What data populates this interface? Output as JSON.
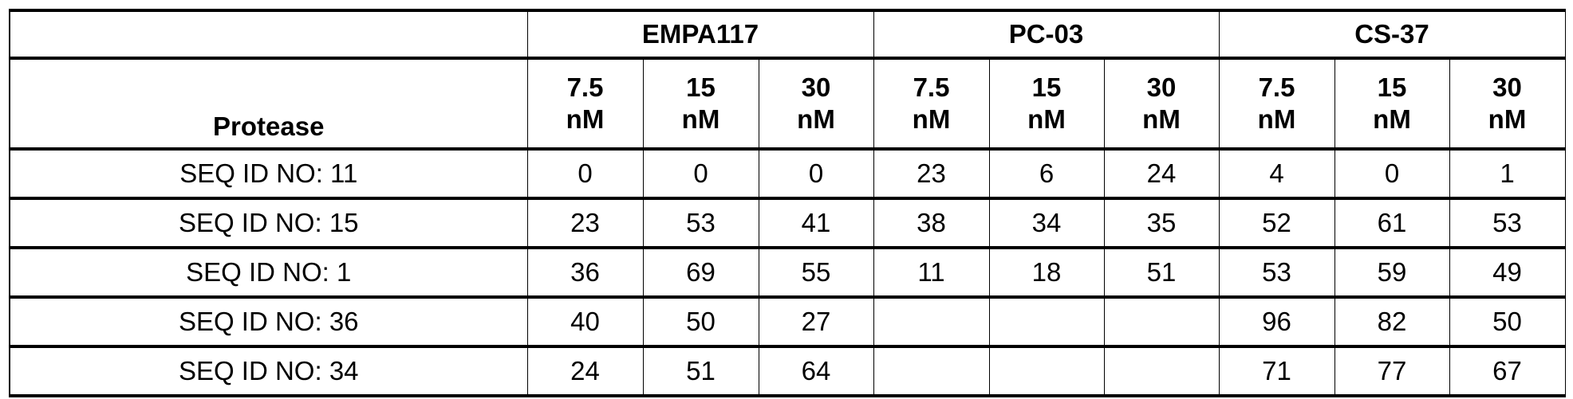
{
  "table": {
    "first_header": "Protease",
    "groups": [
      "EMPA117",
      "PC-03",
      "CS-37"
    ],
    "concentrations": [
      {
        "value": "7.5",
        "unit": "nM"
      },
      {
        "value": "15",
        "unit": "nM"
      },
      {
        "value": "30",
        "unit": "nM"
      }
    ],
    "rows": [
      {
        "protease": "SEQ ID NO: 11",
        "values": [
          "0",
          "0",
          "0",
          "23",
          "6",
          "24",
          "4",
          "0",
          "1"
        ]
      },
      {
        "protease": "SEQ ID NO: 15",
        "values": [
          "23",
          "53",
          "41",
          "38",
          "34",
          "35",
          "52",
          "61",
          "53"
        ]
      },
      {
        "protease": "SEQ ID NO: 1",
        "values": [
          "36",
          "69",
          "55",
          "11",
          "18",
          "51",
          "53",
          "59",
          "49"
        ]
      },
      {
        "protease": "SEQ ID NO: 36",
        "values": [
          "40",
          "50",
          "27",
          "",
          "",
          "",
          "96",
          "82",
          "50"
        ]
      },
      {
        "protease": "SEQ ID NO: 34",
        "values": [
          "24",
          "51",
          "64",
          "",
          "",
          "",
          "71",
          "77",
          "67"
        ]
      }
    ]
  }
}
